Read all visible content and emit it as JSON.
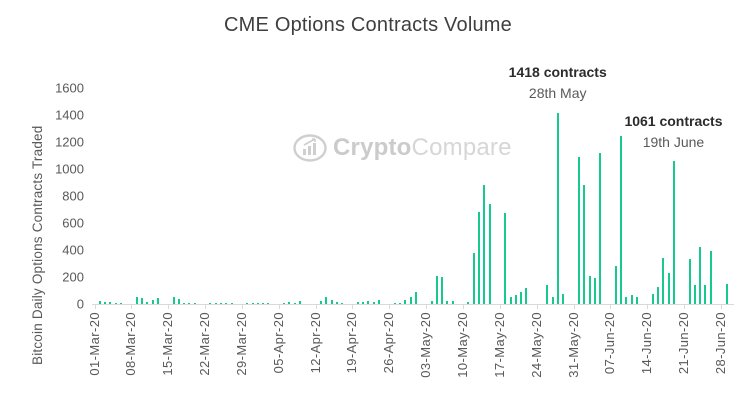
{
  "title": "CME Options Contracts Volume",
  "watermark": {
    "logo": "bar-chart-ellipse-logo",
    "crypto": "Crypto",
    "compare": "Compare"
  },
  "annotations": [
    {
      "bold": "1418 contracts",
      "sub": "28th May",
      "day_index": 88
    },
    {
      "bold": "1061 contracts",
      "sub": "19th June",
      "day_index": 110
    }
  ],
  "colors": {
    "bar": "#17C98D",
    "title": "#3F3F3F",
    "axis_text": "#595959",
    "annotation_value": "#2B2B2B",
    "annotation_date": "#595959",
    "watermark": "#CFCFCF",
    "axis_line": "#D9D9D9"
  },
  "chart_data": {
    "type": "bar",
    "title": "CME Options Contracts Volume",
    "xlabel": "",
    "ylabel": "Bitcoin Daily Options Contracts Traded",
    "ylim": [
      0,
      1600
    ],
    "ytick_step": 200,
    "grid": false,
    "legend": "none",
    "x_unit": "daily (01-Mar-20 to 30-Jun-20, weekends zero)",
    "x_tick_labels": [
      "01-Mar-20",
      "08-Mar-20",
      "15-Mar-20",
      "22-Mar-20",
      "29-Mar-20",
      "05-Apr-20",
      "12-Apr-20",
      "19-Apr-20",
      "26-Apr-20",
      "03-May-20",
      "10-May-20",
      "17-May-20",
      "24-May-20",
      "31-May-20",
      "07-Jun-20",
      "14-Jun-20",
      "21-Jun-20",
      "28-Jun-20"
    ],
    "x_tick_positions": [
      0,
      7,
      14,
      21,
      28,
      35,
      42,
      49,
      56,
      63,
      70,
      77,
      84,
      91,
      98,
      105,
      112,
      119
    ],
    "values": [
      0,
      25,
      14,
      12,
      8,
      6,
      0,
      0,
      51,
      43,
      13,
      30,
      46,
      0,
      0,
      50,
      40,
      6,
      8,
      5,
      0,
      0,
      4,
      8,
      6,
      5,
      7,
      0,
      0,
      6,
      10,
      10,
      6,
      5,
      0,
      0,
      8,
      12,
      6,
      25,
      0,
      0,
      0,
      20,
      55,
      30,
      15,
      10,
      0,
      0,
      14,
      18,
      20,
      16,
      30,
      0,
      0,
      8,
      10,
      30,
      55,
      90,
      0,
      0,
      20,
      205,
      200,
      25,
      20,
      0,
      0,
      13,
      380,
      680,
      880,
      740,
      0,
      0,
      675,
      55,
      65,
      90,
      115,
      0,
      0,
      0,
      140,
      50,
      1418,
      76,
      0,
      0,
      1090,
      880,
      210,
      195,
      1120,
      0,
      0,
      280,
      1246,
      55,
      70,
      50,
      0,
      0,
      76,
      127,
      344,
      229,
      1061,
      0,
      0,
      331,
      140,
      420,
      140,
      395,
      0,
      0,
      150,
      0
    ],
    "highlighted_points": [
      {
        "label": "1418 contracts",
        "date": "28th May",
        "value": 1418
      },
      {
        "label": "1061 contracts",
        "date": "19th June",
        "value": 1061
      }
    ]
  }
}
